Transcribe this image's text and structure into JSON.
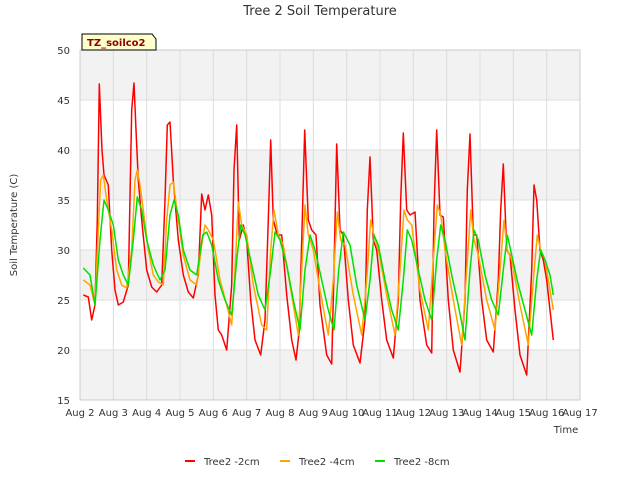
{
  "chart_data": {
    "type": "line",
    "title": "Tree 2 Soil Temperature",
    "xlabel": "Time",
    "ylabel": "Soil Temperature (C)",
    "badge": "TZ_soilco2",
    "ylim": [
      15,
      50
    ],
    "xlim": [
      2,
      17
    ],
    "yticks": [
      "15",
      "20",
      "25",
      "30",
      "35",
      "40",
      "45",
      "50"
    ],
    "xticks": [
      "Aug 2",
      "Aug 3",
      "Aug 4",
      "Aug 5",
      "Aug 6",
      "Aug 7",
      "Aug 8",
      "Aug 9",
      "Aug 10",
      "Aug 11",
      "Aug 12",
      "Aug 13",
      "Aug 14",
      "Aug 15",
      "Aug 16",
      "Aug 17"
    ],
    "xtick_values": [
      2,
      3,
      4,
      5,
      6,
      7,
      8,
      9,
      10,
      11,
      12,
      13,
      14,
      15,
      16,
      17
    ],
    "grid": true,
    "legend": "bottom",
    "series": [
      {
        "name": "Tree2 -2cm",
        "color": "#ff0000",
        "x": [
          2.1,
          2.25,
          2.35,
          2.45,
          2.52,
          2.58,
          2.66,
          2.72,
          2.85,
          2.95,
          3.05,
          3.15,
          3.3,
          3.45,
          3.55,
          3.62,
          3.68,
          3.75,
          3.85,
          4.0,
          4.15,
          4.3,
          4.45,
          4.55,
          4.62,
          4.7,
          4.8,
          4.95,
          5.1,
          5.25,
          5.4,
          5.55,
          5.65,
          5.75,
          5.85,
          5.95,
          6.05,
          6.15,
          6.25,
          6.4,
          6.55,
          6.62,
          6.7,
          6.78,
          6.9,
          7.0,
          7.12,
          7.25,
          7.42,
          7.55,
          7.65,
          7.72,
          7.8,
          7.92,
          8.05,
          8.2,
          8.35,
          8.48,
          8.58,
          8.66,
          8.74,
          8.85,
          8.95,
          9.08,
          9.2,
          9.4,
          9.55,
          9.62,
          9.7,
          9.8,
          9.9,
          10.05,
          10.2,
          10.4,
          10.55,
          10.62,
          10.7,
          10.8,
          10.9,
          11.05,
          11.2,
          11.4,
          11.55,
          11.62,
          11.7,
          11.8,
          11.9,
          12.05,
          12.2,
          12.4,
          12.55,
          12.62,
          12.7,
          12.8,
          12.9,
          13.05,
          13.2,
          13.4,
          13.55,
          13.62,
          13.7,
          13.8,
          13.9,
          14.05,
          14.2,
          14.4,
          14.55,
          14.62,
          14.7,
          14.8,
          14.9,
          15.05,
          15.2,
          15.4,
          15.55,
          15.62,
          15.7,
          15.8,
          15.9,
          16.0,
          16.1,
          16.2
        ],
        "y": [
          25.5,
          25.3,
          23.0,
          24.5,
          33.0,
          46.6,
          40.0,
          37.5,
          36.5,
          30.0,
          26.0,
          24.5,
          24.8,
          26.5,
          44.0,
          46.7,
          42.0,
          37.0,
          33.0,
          28.0,
          26.3,
          25.8,
          26.5,
          35.0,
          42.5,
          42.8,
          37.0,
          31.0,
          27.5,
          25.8,
          25.2,
          27.5,
          35.6,
          34.0,
          35.5,
          33.5,
          25.5,
          22.0,
          21.5,
          20.0,
          26.5,
          38.0,
          42.5,
          31.0,
          32.5,
          31.0,
          25.0,
          21.0,
          19.5,
          23.0,
          33.0,
          41.0,
          33.0,
          31.5,
          31.5,
          25.5,
          21.0,
          19.0,
          22.0,
          32.0,
          42.0,
          33.0,
          32.0,
          31.5,
          24.5,
          19.5,
          18.6,
          28.0,
          40.6,
          32.0,
          31.5,
          25.0,
          20.5,
          18.7,
          23.0,
          34.0,
          39.3,
          31.0,
          30.0,
          25.0,
          21.0,
          19.2,
          25.0,
          35.0,
          41.7,
          34.0,
          33.5,
          33.8,
          25.0,
          20.5,
          19.7,
          34.0,
          42.0,
          33.5,
          33.3,
          25.0,
          20.0,
          17.8,
          25.0,
          36.0,
          41.6,
          31.5,
          31.5,
          25.0,
          21.0,
          19.8,
          27.0,
          34.0,
          38.6,
          30.0,
          29.5,
          24.0,
          19.5,
          17.5,
          28.0,
          36.5,
          35.0,
          30.0,
          29.0,
          27.0,
          24.0,
          21.0
        ]
      },
      {
        "name": "Tree2 -4cm",
        "color": "#ffa500",
        "x": [
          2.1,
          2.3,
          2.45,
          2.55,
          2.62,
          2.7,
          2.8,
          2.95,
          3.1,
          3.25,
          3.4,
          3.55,
          3.65,
          3.72,
          3.8,
          3.9,
          4.05,
          4.2,
          4.35,
          4.5,
          4.6,
          4.7,
          4.8,
          4.95,
          5.1,
          5.3,
          5.5,
          5.65,
          5.75,
          5.85,
          6.0,
          6.2,
          6.4,
          6.55,
          6.65,
          6.75,
          6.85,
          7.0,
          7.2,
          7.45,
          7.6,
          7.72,
          7.82,
          7.95,
          8.1,
          8.3,
          8.55,
          8.65,
          8.75,
          8.85,
          9.0,
          9.2,
          9.45,
          9.6,
          9.72,
          9.82,
          9.95,
          10.2,
          10.45,
          10.6,
          10.72,
          10.82,
          10.95,
          11.2,
          11.45,
          11.6,
          11.72,
          11.82,
          11.95,
          12.2,
          12.45,
          12.6,
          12.72,
          12.82,
          12.95,
          13.2,
          13.45,
          13.6,
          13.72,
          13.82,
          13.95,
          14.2,
          14.45,
          14.6,
          14.72,
          14.82,
          14.95,
          15.2,
          15.45,
          15.6,
          15.72,
          15.82,
          15.95,
          16.1,
          16.2
        ],
        "y": [
          27.0,
          26.5,
          24.5,
          32.0,
          37.0,
          37.5,
          35.0,
          32.0,
          28.0,
          26.5,
          26.2,
          30.0,
          37.0,
          38.0,
          36.5,
          34.0,
          30.0,
          27.5,
          26.8,
          26.5,
          33.0,
          36.5,
          36.8,
          33.0,
          29.5,
          27.0,
          26.5,
          30.5,
          32.5,
          32.0,
          31.0,
          27.0,
          24.5,
          22.5,
          28.0,
          34.8,
          32.5,
          31.5,
          26.5,
          22.5,
          22.0,
          30.0,
          34.0,
          31.5,
          30.5,
          26.5,
          21.5,
          28.0,
          34.5,
          31.5,
          30.0,
          26.0,
          21.5,
          27.0,
          33.8,
          31.0,
          30.5,
          25.5,
          21.5,
          27.0,
          33.0,
          31.5,
          30.0,
          25.5,
          21.5,
          28.0,
          34.0,
          33.0,
          32.5,
          26.0,
          22.0,
          29.0,
          34.5,
          33.5,
          30.0,
          25.0,
          20.5,
          28.0,
          34.0,
          31.0,
          29.5,
          25.0,
          22.0,
          28.0,
          33.0,
          30.0,
          29.0,
          24.5,
          20.5,
          27.0,
          31.5,
          30.0,
          29.0,
          26.0,
          24.0
        ]
      },
      {
        "name": "Tree2 -8cm",
        "color": "#00e000",
        "x": [
          2.1,
          2.3,
          2.45,
          2.6,
          2.72,
          2.85,
          3.0,
          3.15,
          3.3,
          3.45,
          3.6,
          3.72,
          3.85,
          4.0,
          4.2,
          4.4,
          4.55,
          4.7,
          4.82,
          4.95,
          5.1,
          5.3,
          5.5,
          5.68,
          5.8,
          5.95,
          6.15,
          6.35,
          6.55,
          6.7,
          6.82,
          6.95,
          7.15,
          7.35,
          7.55,
          7.72,
          7.85,
          8.0,
          8.2,
          8.4,
          8.6,
          8.75,
          8.9,
          9.05,
          9.25,
          9.45,
          9.62,
          9.76,
          9.9,
          10.1,
          10.3,
          10.55,
          10.7,
          10.82,
          10.95,
          11.15,
          11.35,
          11.55,
          11.7,
          11.82,
          11.95,
          12.15,
          12.35,
          12.55,
          12.7,
          12.82,
          12.95,
          13.15,
          13.35,
          13.55,
          13.7,
          13.82,
          13.95,
          14.15,
          14.35,
          14.55,
          14.7,
          14.82,
          14.95,
          15.15,
          15.35,
          15.55,
          15.7,
          15.82,
          15.95,
          16.1,
          16.2
        ],
        "y": [
          28.2,
          27.5,
          24.5,
          31.0,
          35.0,
          34.0,
          32.5,
          29.0,
          27.5,
          26.5,
          31.0,
          35.3,
          34.0,
          31.0,
          28.5,
          27.0,
          28.0,
          33.5,
          35.0,
          33.5,
          30.0,
          28.0,
          27.5,
          31.5,
          31.8,
          30.5,
          27.0,
          25.0,
          23.5,
          29.0,
          32.5,
          31.5,
          28.5,
          25.5,
          24.0,
          28.0,
          31.8,
          31.0,
          28.5,
          25.0,
          22.0,
          28.0,
          31.5,
          30.0,
          27.0,
          24.0,
          22.0,
          28.0,
          31.8,
          30.5,
          26.5,
          23.0,
          27.0,
          31.5,
          30.5,
          27.0,
          24.0,
          22.0,
          27.0,
          32.0,
          31.0,
          28.0,
          25.0,
          23.0,
          29.0,
          32.5,
          31.0,
          27.5,
          24.5,
          21.0,
          28.0,
          32.0,
          31.0,
          27.5,
          25.0,
          23.5,
          28.0,
          31.5,
          29.5,
          26.5,
          24.0,
          21.5,
          27.0,
          30.0,
          29.0,
          27.5,
          25.5
        ]
      }
    ]
  }
}
